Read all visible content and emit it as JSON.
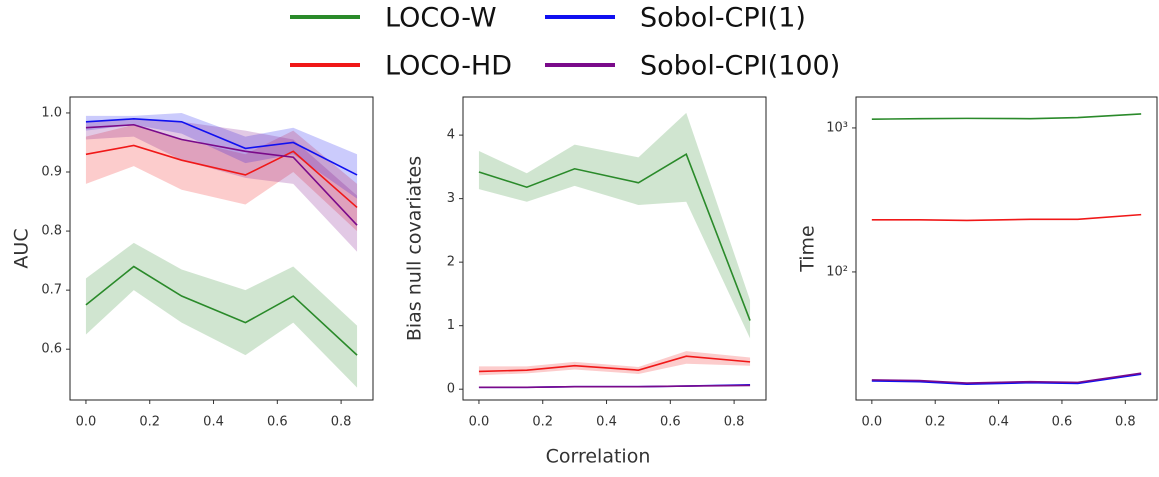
{
  "legend": [
    {
      "name": "LOCO-W",
      "color": "#2a8a2a"
    },
    {
      "name": "LOCO-HD",
      "color": "#f01818"
    },
    {
      "name": "Sobol-CPI(1)",
      "color": "#1010f0"
    },
    {
      "name": "Sobol-CPI(100)",
      "color": "#7a0a8a"
    }
  ],
  "xlabel": "Correlation",
  "chart_data": [
    {
      "type": "line",
      "ylabel": "AUC",
      "x": [
        0,
        0.15,
        0.3,
        0.5,
        0.65,
        0.85
      ],
      "xlim": [
        -0.05,
        0.9
      ],
      "xticks": [
        {
          "value": 0,
          "label": "0.0"
        },
        0.2,
        0.4,
        0.6,
        0.8
      ],
      "ylim": [
        0.514,
        1.027
      ],
      "yticks": [
        0.6,
        0.7,
        0.8,
        0.9,
        {
          "value": 1,
          "label": "1.0"
        }
      ],
      "series": [
        {
          "color": "#2a8a2a",
          "values": [
            0.675,
            0.74,
            0.69,
            0.645,
            0.69,
            0.59
          ],
          "lower": [
            0.625,
            0.7,
            0.645,
            0.59,
            0.645,
            0.535
          ],
          "upper": [
            0.72,
            0.78,
            0.735,
            0.7,
            0.74,
            0.64
          ]
        },
        {
          "color": "#f01818",
          "values": [
            0.93,
            0.945,
            0.92,
            0.895,
            0.935,
            0.84
          ],
          "lower": [
            0.88,
            0.91,
            0.87,
            0.845,
            0.9,
            0.8
          ],
          "upper": [
            0.96,
            0.98,
            0.955,
            0.93,
            0.97,
            0.88
          ]
        },
        {
          "color": "#1010f0",
          "values": [
            0.985,
            0.99,
            0.985,
            0.94,
            0.95,
            0.895
          ],
          "lower": [
            0.97,
            0.98,
            0.965,
            0.915,
            0.93,
            0.855
          ],
          "upper": [
            0.995,
            0.995,
            1.0,
            0.96,
            0.975,
            0.93
          ]
        },
        {
          "color": "#7a0a8a",
          "values": [
            0.975,
            0.98,
            0.955,
            0.935,
            0.925,
            0.81
          ],
          "lower": [
            0.955,
            0.96,
            0.92,
            0.89,
            0.88,
            0.765
          ],
          "upper": [
            0.985,
            0.99,
            0.985,
            0.97,
            0.955,
            0.86
          ]
        }
      ]
    },
    {
      "type": "line",
      "ylabel": "Bias null covariates",
      "x": [
        0,
        0.15,
        0.3,
        0.5,
        0.65,
        0.85
      ],
      "xlim": [
        -0.05,
        0.9
      ],
      "xticks": [
        {
          "value": 0,
          "label": "0.0"
        },
        0.2,
        0.4,
        0.6,
        0.8
      ],
      "ylim": [
        -0.17,
        4.6
      ],
      "yticks": [
        0,
        1,
        2,
        3,
        4
      ],
      "series": [
        {
          "color": "#2a8a2a",
          "values": [
            3.42,
            3.18,
            3.47,
            3.25,
            3.7,
            1.08
          ],
          "lower": [
            3.15,
            2.95,
            3.2,
            2.9,
            2.95,
            0.8
          ],
          "upper": [
            3.75,
            3.4,
            3.85,
            3.65,
            4.35,
            1.4
          ]
        },
        {
          "color": "#f01818",
          "values": [
            0.28,
            0.3,
            0.37,
            0.3,
            0.52,
            0.43
          ],
          "lower": [
            0.22,
            0.25,
            0.31,
            0.24,
            0.4,
            0.37
          ],
          "upper": [
            0.36,
            0.36,
            0.43,
            0.35,
            0.6,
            0.5
          ]
        },
        {
          "color": "#1010f0",
          "values": [
            0.03,
            0.03,
            0.04,
            0.04,
            0.05,
            0.07
          ]
        },
        {
          "color": "#7a0a8a",
          "values": [
            0.03,
            0.03,
            0.04,
            0.04,
            0.05,
            0.06
          ]
        }
      ]
    },
    {
      "type": "line",
      "ylabel": "Time",
      "log": true,
      "x": [
        0,
        0.15,
        0.3,
        0.5,
        0.65,
        0.85
      ],
      "xlim": [
        -0.05,
        0.9
      ],
      "xticks": [
        {
          "value": 0,
          "label": "0.0"
        },
        0.2,
        0.4,
        0.6,
        0.8
      ],
      "ylim": [
        12.9,
        1640
      ],
      "yticks": [
        {
          "value": 100,
          "label": "10²"
        },
        {
          "value": 1000,
          "label": "10³"
        }
      ],
      "series": [
        {
          "color": "#2a8a2a",
          "values": [
            1150,
            1160,
            1165,
            1160,
            1180,
            1250
          ]
        },
        {
          "color": "#f01818",
          "values": [
            230,
            230,
            228,
            232,
            232,
            250
          ]
        },
        {
          "color": "#1010f0",
          "values": [
            17.5,
            17.3,
            16.6,
            17,
            16.8,
            19.5
          ]
        },
        {
          "color": "#7a0a8a",
          "values": [
            17.8,
            17.6,
            16.9,
            17.3,
            17.1,
            19.8
          ]
        }
      ]
    }
  ]
}
